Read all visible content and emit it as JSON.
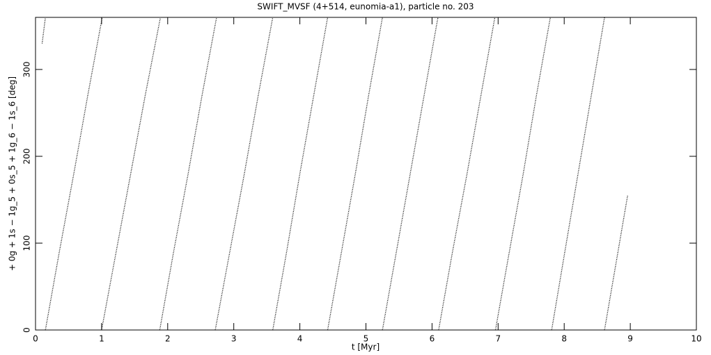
{
  "chart_data": {
    "type": "line",
    "title": "SWIFT_MVSF (4+514, eunomia-a1), particle no. 203",
    "x_label": "t [Myr]",
    "y_label": "+ 0g + 1s − 1g_5 + 0s_5 + 1g_6 − 1s_6 [deg]",
    "xlim": [
      0,
      10
    ],
    "ylim": [
      0,
      360
    ],
    "xticks": [
      0,
      1,
      2,
      3,
      4,
      5,
      6,
      7,
      8,
      9,
      10
    ],
    "yticks": [
      0,
      100,
      200,
      300
    ],
    "color": "#000000",
    "x": [
      0.1,
      0.15,
      null,
      0.15,
      0.36,
      0.58,
      0.79,
      1.01,
      null,
      1.0,
      1.22,
      1.44,
      1.66,
      1.89,
      null,
      1.88,
      2.09,
      2.31,
      2.52,
      2.74,
      null,
      2.72,
      2.94,
      3.16,
      3.37,
      3.59,
      null,
      3.59,
      3.8,
      4.0,
      4.21,
      4.42,
      null,
      4.42,
      4.63,
      4.84,
      5.04,
      5.25,
      null,
      5.25,
      5.46,
      5.67,
      5.88,
      6.09,
      null,
      6.1,
      6.31,
      6.53,
      6.74,
      6.95,
      null,
      6.96,
      7.17,
      7.38,
      7.58,
      7.79,
      null,
      7.81,
      8.01,
      8.21,
      8.41,
      8.61,
      null,
      8.61,
      8.78,
      8.96
    ],
    "values": [
      330,
      360,
      null,
      0,
      90,
      180,
      270,
      360,
      null,
      0,
      90,
      180,
      270,
      360,
      null,
      0,
      90,
      180,
      270,
      360,
      null,
      0,
      90,
      180,
      270,
      360,
      null,
      0,
      90,
      180,
      270,
      360,
      null,
      0,
      90,
      180,
      270,
      360,
      null,
      0,
      90,
      180,
      270,
      360,
      null,
      0,
      90,
      180,
      270,
      360,
      null,
      0,
      90,
      180,
      270,
      360,
      null,
      0,
      90,
      180,
      270,
      360,
      null,
      0,
      75,
      155
    ]
  }
}
